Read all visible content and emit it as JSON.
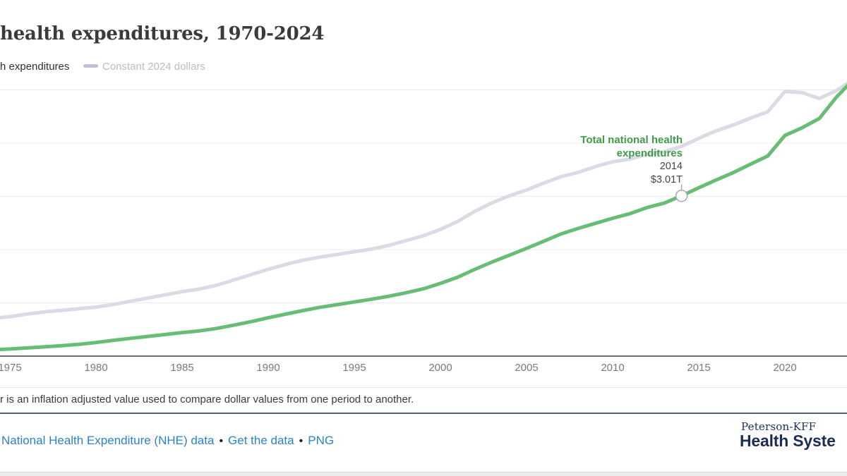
{
  "header": {
    "title": "health expenditures, 1970-2024"
  },
  "legend": {
    "items": [
      {
        "label": "h expenditures"
      },
      {
        "label": "Constant 2024 dollars"
      }
    ]
  },
  "chart_data": {
    "type": "line",
    "title": "health expenditures, 1970-2024",
    "xlabel": "",
    "ylabel": "",
    "xlim": [
      1970,
      2024
    ],
    "ylim_trillions": [
      0,
      5.5
    ],
    "grid": "horizontal",
    "legend_position": "top-left",
    "x_ticks": [
      1975,
      1980,
      1985,
      1990,
      1995,
      2000,
      2005,
      2010,
      2015,
      2020
    ],
    "y_gridlines_trillions": [
      1,
      2,
      3,
      4,
      5
    ],
    "x": [
      1970,
      1971,
      1972,
      1973,
      1974,
      1975,
      1976,
      1977,
      1978,
      1979,
      1980,
      1981,
      1982,
      1983,
      1984,
      1985,
      1986,
      1987,
      1988,
      1989,
      1990,
      1991,
      1992,
      1993,
      1994,
      1995,
      1996,
      1997,
      1998,
      1999,
      2000,
      2001,
      2002,
      2003,
      2004,
      2005,
      2006,
      2007,
      2008,
      2009,
      2010,
      2011,
      2012,
      2013,
      2014,
      2015,
      2016,
      2017,
      2018,
      2019,
      2020,
      2021,
      2022,
      2023,
      2024
    ],
    "series": [
      {
        "name": "Total national health expenditures",
        "color": "#66bd73",
        "values_trillions": [
          0.075,
          0.083,
          0.093,
          0.103,
          0.117,
          0.134,
          0.153,
          0.174,
          0.195,
          0.221,
          0.255,
          0.297,
          0.334,
          0.369,
          0.405,
          0.442,
          0.474,
          0.519,
          0.581,
          0.647,
          0.721,
          0.788,
          0.854,
          0.916,
          0.967,
          1.017,
          1.069,
          1.125,
          1.19,
          1.263,
          1.365,
          1.482,
          1.63,
          1.768,
          1.896,
          2.024,
          2.157,
          2.295,
          2.399,
          2.494,
          2.589,
          2.676,
          2.791,
          2.876,
          3.01,
          3.163,
          3.307,
          3.446,
          3.604,
          3.757,
          4.144,
          4.289,
          4.464,
          4.867,
          5.2
        ]
      },
      {
        "name": "Constant 2024 dollars",
        "color": "#d9dbe5",
        "values_trillions": [
          0.57,
          0.6,
          0.64,
          0.67,
          0.71,
          0.74,
          0.79,
          0.83,
          0.86,
          0.89,
          0.92,
          0.97,
          1.03,
          1.09,
          1.15,
          1.21,
          1.26,
          1.33,
          1.43,
          1.53,
          1.63,
          1.72,
          1.8,
          1.86,
          1.91,
          1.96,
          2.01,
          2.08,
          2.17,
          2.26,
          2.38,
          2.53,
          2.72,
          2.88,
          3.01,
          3.12,
          3.25,
          3.37,
          3.45,
          3.56,
          3.65,
          3.7,
          3.79,
          3.84,
          3.94,
          4.09,
          4.23,
          4.34,
          4.47,
          4.59,
          4.97,
          4.95,
          4.84,
          4.99,
          5.2
        ]
      }
    ]
  },
  "annotation": {
    "label_line1": "Total national health",
    "label_line2": "expenditures",
    "year": "2014",
    "value": "$3.01T"
  },
  "note": "r is an inflation adjusted value used to compare dollar values from one period to another.",
  "footer": {
    "separator": "•",
    "links": [
      {
        "label": "National Health Expenditure (NHE) data"
      },
      {
        "label": "Get the data"
      },
      {
        "label": "PNG"
      }
    ],
    "brand": {
      "line1": "Peterson-KFF",
      "line2": "Health Syste"
    }
  },
  "colors": {
    "total_line": "#66bd73",
    "constant_line": "#d9dbe5",
    "annotation_green": "#3f9b4a",
    "gridline": "#ececec",
    "axis": "#6b6b6b",
    "marker_stroke": "#a5a9b1",
    "link_blue": "#2e82c9",
    "footer_rule": "#4f5f80",
    "brand_navy": "#1d2c55"
  }
}
